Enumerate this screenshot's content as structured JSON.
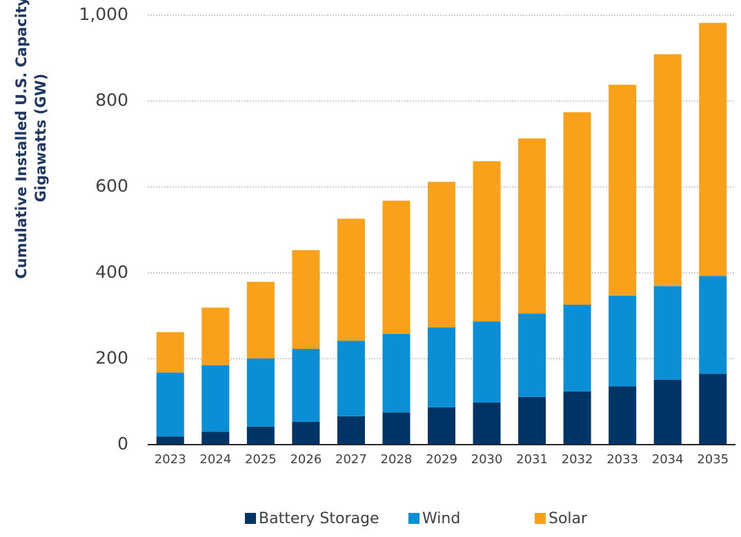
{
  "chart_data": {
    "type": "bar",
    "stacked": true,
    "y_label": [
      "Cumulative Installed U.S. Capacity",
      "Gigawatts (GW)"
    ],
    "categories": [
      "2023",
      "2024",
      "2025",
      "2026",
      "2027",
      "2028",
      "2029",
      "2030",
      "2031",
      "2032",
      "2033",
      "2034",
      "2035"
    ],
    "series": [
      {
        "name": "Battery Storage",
        "color": "#003366",
        "values": [
          19,
          30,
          42,
          53,
          66,
          75,
          87,
          98,
          111,
          124,
          136,
          151,
          165
        ]
      },
      {
        "name": "Wind",
        "color": "#0a8fd6",
        "values": [
          149,
          155,
          159,
          170,
          176,
          183,
          186,
          189,
          194,
          202,
          211,
          218,
          228
        ]
      },
      {
        "name": "Solar",
        "color": "#f9a11b",
        "values": [
          94,
          134,
          178,
          230,
          284,
          310,
          339,
          373,
          408,
          448,
          491,
          540,
          589
        ]
      }
    ],
    "ylim": [
      0,
      1000
    ],
    "yticks": [
      0,
      200,
      400,
      600,
      800,
      {
        "value": 1000,
        "label": "1,000"
      }
    ],
    "grid": true,
    "legend": "bottom"
  }
}
